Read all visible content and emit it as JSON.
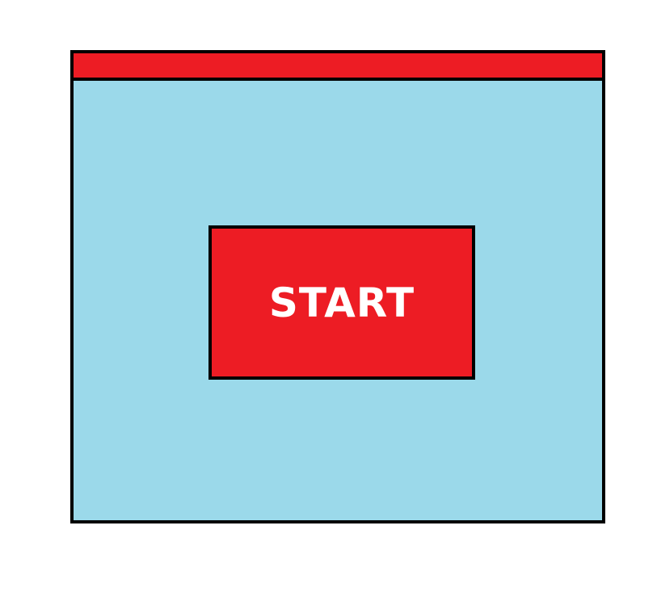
{
  "window": {
    "titlebar_color": "#ed1c24",
    "background_color": "#9bd9ea",
    "border_color": "#000000"
  },
  "main": {
    "start_button": {
      "label": "START",
      "background_color": "#ed1c24",
      "text_color": "#ffffff"
    }
  }
}
